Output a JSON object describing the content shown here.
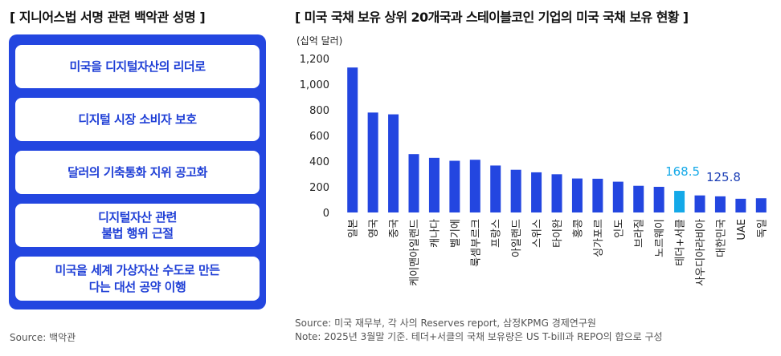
{
  "left": {
    "title": "[ 지니어스법 서명 관련 백악관 성명 ]",
    "items": [
      "미국을 디지털자산의 리더로",
      "디지털 시장 소비자 보호",
      "달러의 기축통화 지위 공고화",
      "디지털자산 관련\n불법 행위 근절",
      "미국을 세계 가상자산 수도로 만든\n다는 대선 공약 이행"
    ],
    "source": "Source: 백악관"
  },
  "right": {
    "title": "[ 미국 국채 보유 상위 20개국과 스테이블코인 기업의 미국 국채 보유 현황 ]",
    "unit": "(십억 달러)",
    "source": "Source: 미국 재무부, 각 사의 Reserves report, 삼정KPMG 경제연구원",
    "note": "Note: 2025년 3월말 기준. 테더+서클의 국채 보유량은 US T-bill과 REPO의 합으로 구성"
  },
  "colors": {
    "bar": "#2346e0",
    "highlight": "#14a9e8",
    "panel": "#2346e0"
  },
  "chart_data": {
    "type": "bar",
    "categories": [
      "일본",
      "영국",
      "중국",
      "케이맨아일랜드",
      "캐나다",
      "벨기에",
      "룩셈부르크",
      "프랑스",
      "아일랜드",
      "스위스",
      "타이완",
      "홍콩",
      "싱가포르",
      "인도",
      "브라질",
      "노르웨이",
      "테더+서클",
      "사우디아라비아",
      "대한민국",
      "UAE",
      "독일"
    ],
    "values": [
      1130,
      779,
      765,
      455,
      426,
      403,
      411,
      366,
      333,
      313,
      298,
      265,
      263,
      240,
      208,
      200,
      168.5,
      133,
      125.8,
      107,
      111
    ],
    "highlight_index": 16,
    "data_labels": [
      {
        "index": 16,
        "text": "168.5"
      },
      {
        "index": 18,
        "text": "125.8"
      }
    ],
    "yticks": [
      "0",
      "200",
      "400",
      "600",
      "800",
      "1,000",
      "1,200"
    ],
    "ylim": [
      0,
      1200
    ],
    "xlabel": "",
    "ylabel": "",
    "grid": false
  }
}
